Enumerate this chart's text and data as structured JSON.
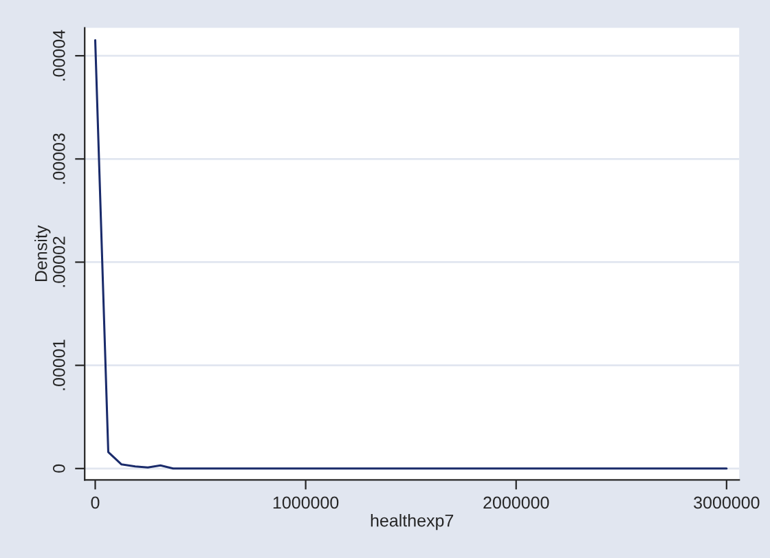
{
  "chart_data": {
    "type": "line",
    "xlabel": "healthexp7",
    "ylabel": "Density",
    "x": [
      0,
      62000,
      125000,
      190000,
      250000,
      310000,
      370000,
      700000,
      1050000,
      1350000,
      1700000,
      2000000,
      2500000,
      3000000
    ],
    "series": [
      {
        "color": "#1a2b6b",
        "values": [
          4.15e-05,
          1.6e-06,
          4e-07,
          2e-07,
          1e-07,
          3e-07,
          0,
          0,
          0,
          0,
          0,
          0,
          0,
          0
        ]
      }
    ],
    "xlim": [
      -50000,
      3060000
    ],
    "ylim": [
      -1.1e-06,
      4.27e-05
    ],
    "xticks": [
      0,
      1000000,
      2000000,
      3000000
    ],
    "yticks": [
      0,
      {
        "value": 1e-05,
        "label": ".00001"
      },
      {
        "value": 2e-05,
        "label": ".00002"
      },
      {
        "value": 3e-05,
        "label": ".00003"
      },
      {
        "value": 4e-05,
        "label": ".00004"
      }
    ],
    "grid": "y",
    "legend": false
  }
}
